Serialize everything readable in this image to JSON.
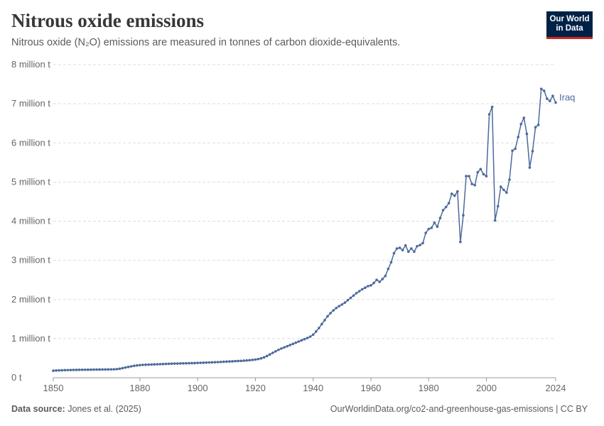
{
  "header": {
    "title": "Nitrous oxide emissions",
    "subtitle": "Nitrous oxide (N₂O) emissions are measured in tonnes of carbon dioxide-equivalents."
  },
  "logo": {
    "line1": "Our World",
    "line2": "in Data"
  },
  "footer": {
    "source_label": "Data source:",
    "source_text": "Jones et al. (2025)",
    "url_text": "OurWorldinData.org/co2-and-greenhouse-gas-emissions | CC BY"
  },
  "colors": {
    "series": "#4c6a9c",
    "grid": "#dddddd",
    "axis_text": "#666666"
  },
  "chart_data": {
    "type": "line",
    "title": "Nitrous oxide emissions",
    "xlim": [
      1850,
      2024
    ],
    "ylim": [
      0,
      8000000
    ],
    "x_ticks": [
      1850,
      1880,
      1900,
      1920,
      1940,
      1960,
      1980,
      2000,
      2024
    ],
    "y_ticks": [
      {
        "value": 0,
        "label": "0 t"
      },
      {
        "value": 1000000,
        "label": "1 million t"
      },
      {
        "value": 2000000,
        "label": "2 million t"
      },
      {
        "value": 3000000,
        "label": "3 million t"
      },
      {
        "value": 4000000,
        "label": "4 million t"
      },
      {
        "value": 5000000,
        "label": "5 million t"
      },
      {
        "value": 6000000,
        "label": "6 million t"
      },
      {
        "value": 7000000,
        "label": "7 million t"
      },
      {
        "value": 8000000,
        "label": "8 million t"
      }
    ],
    "grid": true,
    "series": [
      {
        "name": "Iraq",
        "points": [
          [
            1850,
            180000
          ],
          [
            1851,
            185000
          ],
          [
            1852,
            188000
          ],
          [
            1853,
            190000
          ],
          [
            1854,
            193000
          ],
          [
            1855,
            195000
          ],
          [
            1856,
            197000
          ],
          [
            1857,
            199000
          ],
          [
            1858,
            200000
          ],
          [
            1859,
            202000
          ],
          [
            1860,
            203000
          ],
          [
            1861,
            204000
          ],
          [
            1862,
            205000
          ],
          [
            1863,
            206000
          ],
          [
            1864,
            207000
          ],
          [
            1865,
            208000
          ],
          [
            1866,
            209000
          ],
          [
            1867,
            210000
          ],
          [
            1868,
            211000
          ],
          [
            1869,
            212000
          ],
          [
            1870,
            213000
          ],
          [
            1871,
            215000
          ],
          [
            1872,
            220000
          ],
          [
            1873,
            230000
          ],
          [
            1874,
            245000
          ],
          [
            1875,
            260000
          ],
          [
            1876,
            275000
          ],
          [
            1877,
            290000
          ],
          [
            1878,
            305000
          ],
          [
            1879,
            315000
          ],
          [
            1880,
            322000
          ],
          [
            1881,
            328000
          ],
          [
            1882,
            332000
          ],
          [
            1883,
            335000
          ],
          [
            1884,
            338000
          ],
          [
            1885,
            341000
          ],
          [
            1886,
            344000
          ],
          [
            1887,
            347000
          ],
          [
            1888,
            350000
          ],
          [
            1889,
            353000
          ],
          [
            1890,
            356000
          ],
          [
            1891,
            359000
          ],
          [
            1892,
            361000
          ],
          [
            1893,
            363000
          ],
          [
            1894,
            365000
          ],
          [
            1895,
            367000
          ],
          [
            1896,
            369000
          ],
          [
            1897,
            371000
          ],
          [
            1898,
            373000
          ],
          [
            1899,
            375000
          ],
          [
            1900,
            378000
          ],
          [
            1901,
            381000
          ],
          [
            1902,
            384000
          ],
          [
            1903,
            387000
          ],
          [
            1904,
            390000
          ],
          [
            1905,
            393000
          ],
          [
            1906,
            396000
          ],
          [
            1907,
            399000
          ],
          [
            1908,
            403000
          ],
          [
            1909,
            407000
          ],
          [
            1910,
            411000
          ],
          [
            1911,
            415000
          ],
          [
            1912,
            419000
          ],
          [
            1913,
            423000
          ],
          [
            1914,
            427000
          ],
          [
            1915,
            431000
          ],
          [
            1916,
            436000
          ],
          [
            1917,
            441000
          ],
          [
            1918,
            447000
          ],
          [
            1919,
            455000
          ],
          [
            1920,
            465000
          ],
          [
            1921,
            478000
          ],
          [
            1922,
            495000
          ],
          [
            1923,
            520000
          ],
          [
            1924,
            555000
          ],
          [
            1925,
            595000
          ],
          [
            1926,
            635000
          ],
          [
            1927,
            675000
          ],
          [
            1928,
            712000
          ],
          [
            1929,
            745000
          ],
          [
            1930,
            775000
          ],
          [
            1931,
            805000
          ],
          [
            1932,
            835000
          ],
          [
            1933,
            865000
          ],
          [
            1934,
            895000
          ],
          [
            1935,
            925000
          ],
          [
            1936,
            955000
          ],
          [
            1937,
            985000
          ],
          [
            1938,
            1015000
          ],
          [
            1939,
            1050000
          ],
          [
            1940,
            1100000
          ],
          [
            1941,
            1180000
          ],
          [
            1942,
            1270000
          ],
          [
            1943,
            1370000
          ],
          [
            1944,
            1470000
          ],
          [
            1945,
            1570000
          ],
          [
            1946,
            1650000
          ],
          [
            1947,
            1720000
          ],
          [
            1948,
            1780000
          ],
          [
            1949,
            1830000
          ],
          [
            1950,
            1870000
          ],
          [
            1951,
            1920000
          ],
          [
            1952,
            1980000
          ],
          [
            1953,
            2040000
          ],
          [
            1954,
            2100000
          ],
          [
            1955,
            2160000
          ],
          [
            1956,
            2210000
          ],
          [
            1957,
            2260000
          ],
          [
            1958,
            2300000
          ],
          [
            1959,
            2340000
          ],
          [
            1960,
            2360000
          ],
          [
            1961,
            2420000
          ],
          [
            1962,
            2500000
          ],
          [
            1963,
            2450000
          ],
          [
            1964,
            2520000
          ],
          [
            1965,
            2600000
          ],
          [
            1966,
            2780000
          ],
          [
            1967,
            2950000
          ],
          [
            1968,
            3180000
          ],
          [
            1969,
            3300000
          ],
          [
            1970,
            3320000
          ],
          [
            1971,
            3260000
          ],
          [
            1972,
            3380000
          ],
          [
            1973,
            3220000
          ],
          [
            1974,
            3300000
          ],
          [
            1975,
            3220000
          ],
          [
            1976,
            3360000
          ],
          [
            1977,
            3390000
          ],
          [
            1978,
            3440000
          ],
          [
            1979,
            3700000
          ],
          [
            1980,
            3800000
          ],
          [
            1981,
            3830000
          ],
          [
            1982,
            3960000
          ],
          [
            1983,
            3860000
          ],
          [
            1984,
            4080000
          ],
          [
            1985,
            4280000
          ],
          [
            1986,
            4360000
          ],
          [
            1987,
            4460000
          ],
          [
            1988,
            4700000
          ],
          [
            1989,
            4650000
          ],
          [
            1990,
            4760000
          ],
          [
            1991,
            3470000
          ],
          [
            1992,
            4150000
          ],
          [
            1993,
            5150000
          ],
          [
            1994,
            5150000
          ],
          [
            1995,
            4950000
          ],
          [
            1996,
            4920000
          ],
          [
            1997,
            5250000
          ],
          [
            1998,
            5330000
          ],
          [
            1999,
            5200000
          ],
          [
            2000,
            5150000
          ],
          [
            2001,
            6730000
          ],
          [
            2002,
            6920000
          ],
          [
            2003,
            4020000
          ],
          [
            2004,
            4380000
          ],
          [
            2005,
            4880000
          ],
          [
            2006,
            4800000
          ],
          [
            2007,
            4730000
          ],
          [
            2008,
            5060000
          ],
          [
            2009,
            5800000
          ],
          [
            2010,
            5850000
          ],
          [
            2011,
            6150000
          ],
          [
            2012,
            6480000
          ],
          [
            2013,
            6640000
          ],
          [
            2014,
            6230000
          ],
          [
            2015,
            5370000
          ],
          [
            2016,
            5790000
          ],
          [
            2017,
            6400000
          ],
          [
            2018,
            6460000
          ],
          [
            2019,
            7380000
          ],
          [
            2020,
            7330000
          ],
          [
            2021,
            7130000
          ],
          [
            2022,
            7070000
          ],
          [
            2023,
            7200000
          ],
          [
            2024,
            7030000
          ]
        ]
      }
    ]
  }
}
